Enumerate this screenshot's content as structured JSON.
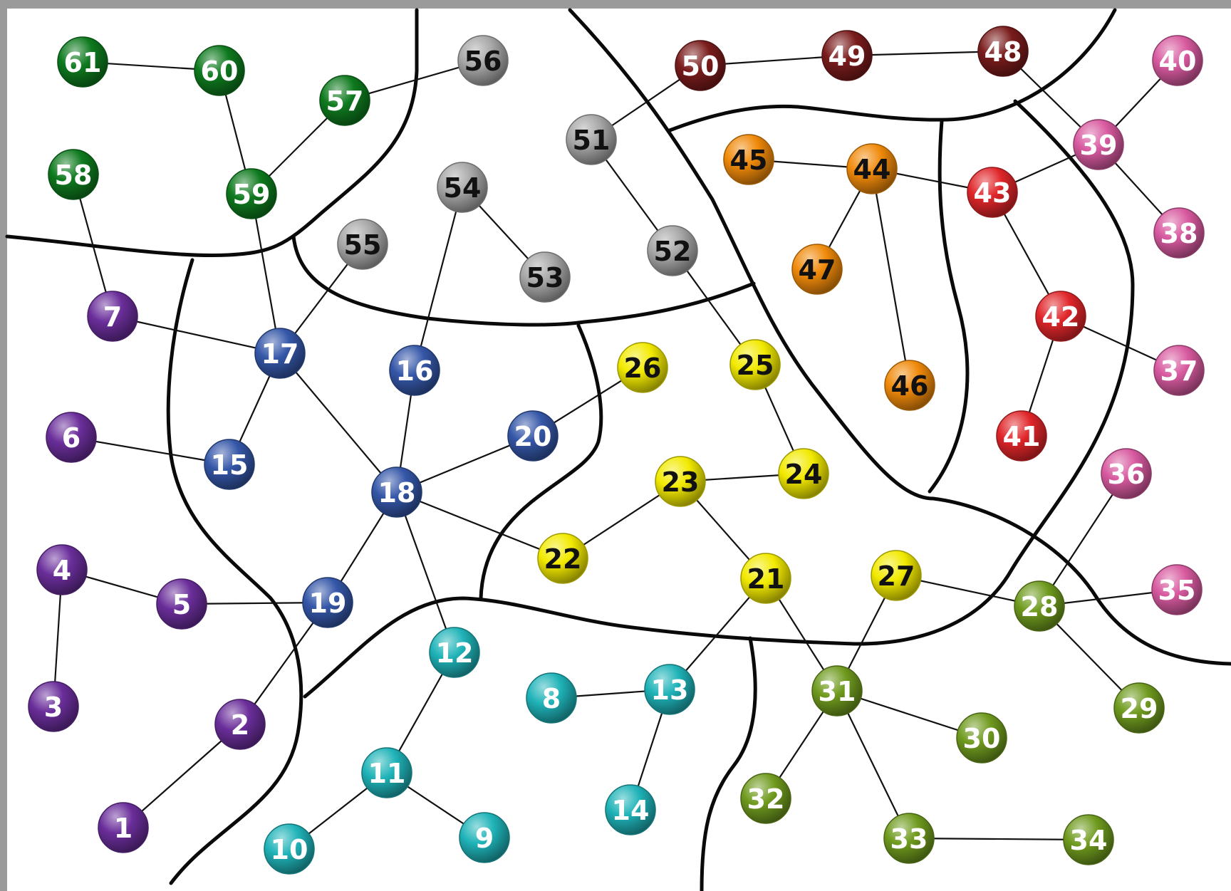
{
  "palette": {
    "purple": "#6a2e9a",
    "blue": "#3557a8",
    "cyan": "#1fb3b8",
    "yellow": "#f2ea00",
    "olive": "#6f9a1e",
    "pink": "#d85aa0",
    "red": "#e0262a",
    "orange": "#f08a0a",
    "maroon": "#7a1c1c",
    "gray": "#a7a7a7",
    "green": "#0e7a1e"
  },
  "nodes": [
    {
      "id": "1",
      "label": "1",
      "group": "purple"
    },
    {
      "id": "2",
      "label": "2",
      "group": "purple"
    },
    {
      "id": "3",
      "label": "3",
      "group": "purple"
    },
    {
      "id": "4",
      "label": "4",
      "group": "purple"
    },
    {
      "id": "5",
      "label": "5",
      "group": "purple"
    },
    {
      "id": "6",
      "label": "6",
      "group": "purple"
    },
    {
      "id": "7",
      "label": "7",
      "group": "purple"
    },
    {
      "id": "8",
      "label": "8",
      "group": "cyan"
    },
    {
      "id": "9",
      "label": "9",
      "group": "cyan"
    },
    {
      "id": "10",
      "label": "10",
      "group": "cyan"
    },
    {
      "id": "11",
      "label": "11",
      "group": "cyan"
    },
    {
      "id": "12",
      "label": "12",
      "group": "cyan"
    },
    {
      "id": "13",
      "label": "13",
      "group": "cyan"
    },
    {
      "id": "14",
      "label": "14",
      "group": "cyan"
    },
    {
      "id": "15",
      "label": "15",
      "group": "blue"
    },
    {
      "id": "16",
      "label": "16",
      "group": "blue"
    },
    {
      "id": "17",
      "label": "17",
      "group": "blue"
    },
    {
      "id": "18",
      "label": "18",
      "group": "blue"
    },
    {
      "id": "19",
      "label": "19",
      "group": "blue"
    },
    {
      "id": "20",
      "label": "20",
      "group": "blue"
    },
    {
      "id": "21",
      "label": "21",
      "group": "yellow"
    },
    {
      "id": "22",
      "label": "22",
      "group": "yellow"
    },
    {
      "id": "23",
      "label": "23",
      "group": "yellow"
    },
    {
      "id": "24",
      "label": "24",
      "group": "yellow"
    },
    {
      "id": "25",
      "label": "25",
      "group": "yellow"
    },
    {
      "id": "26",
      "label": "26",
      "group": "yellow"
    },
    {
      "id": "27",
      "label": "27",
      "group": "yellow"
    },
    {
      "id": "28",
      "label": "28",
      "group": "olive"
    },
    {
      "id": "29",
      "label": "29",
      "group": "olive"
    },
    {
      "id": "30",
      "label": "30",
      "group": "olive"
    },
    {
      "id": "31",
      "label": "31",
      "group": "olive"
    },
    {
      "id": "32",
      "label": "32",
      "group": "olive"
    },
    {
      "id": "33",
      "label": "33",
      "group": "olive"
    },
    {
      "id": "34",
      "label": "34",
      "group": "olive"
    },
    {
      "id": "35",
      "label": "35",
      "group": "pink"
    },
    {
      "id": "36",
      "label": "36",
      "group": "pink"
    },
    {
      "id": "37",
      "label": "37",
      "group": "pink"
    },
    {
      "id": "38",
      "label": "38",
      "group": "pink"
    },
    {
      "id": "39",
      "label": "39",
      "group": "pink"
    },
    {
      "id": "40",
      "label": "40",
      "group": "pink"
    },
    {
      "id": "41",
      "label": "41",
      "group": "red"
    },
    {
      "id": "42",
      "label": "42",
      "group": "red"
    },
    {
      "id": "43",
      "label": "43",
      "group": "red"
    },
    {
      "id": "44",
      "label": "44",
      "group": "orange"
    },
    {
      "id": "45",
      "label": "45",
      "group": "orange"
    },
    {
      "id": "46",
      "label": "46",
      "group": "orange"
    },
    {
      "id": "47",
      "label": "47",
      "group": "orange"
    },
    {
      "id": "48",
      "label": "48",
      "group": "maroon"
    },
    {
      "id": "49",
      "label": "49",
      "group": "maroon"
    },
    {
      "id": "50",
      "label": "50",
      "group": "maroon"
    },
    {
      "id": "51",
      "label": "51",
      "group": "gray"
    },
    {
      "id": "52",
      "label": "52",
      "group": "gray"
    },
    {
      "id": "53",
      "label": "53",
      "group": "gray"
    },
    {
      "id": "54",
      "label": "54",
      "group": "gray"
    },
    {
      "id": "55",
      "label": "55",
      "group": "gray"
    },
    {
      "id": "56",
      "label": "56",
      "group": "gray"
    },
    {
      "id": "57",
      "label": "57",
      "group": "green"
    },
    {
      "id": "58",
      "label": "58",
      "group": "green"
    },
    {
      "id": "59",
      "label": "59",
      "group": "green"
    },
    {
      "id": "60",
      "label": "60",
      "group": "green"
    },
    {
      "id": "61",
      "label": "61",
      "group": "green"
    }
  ],
  "edges": [
    [
      "1",
      "2"
    ],
    [
      "2",
      "19"
    ],
    [
      "19",
      "5"
    ],
    [
      "5",
      "4"
    ],
    [
      "4",
      "3"
    ],
    [
      "19",
      "18"
    ],
    [
      "6",
      "15"
    ],
    [
      "15",
      "17"
    ],
    [
      "7",
      "17"
    ],
    [
      "17",
      "18"
    ],
    [
      "17",
      "55"
    ],
    [
      "17",
      "59"
    ],
    [
      "58",
      "7"
    ],
    [
      "59",
      "60"
    ],
    [
      "60",
      "61"
    ],
    [
      "59",
      "57"
    ],
    [
      "57",
      "56"
    ],
    [
      "18",
      "16"
    ],
    [
      "16",
      "54"
    ],
    [
      "54",
      "53"
    ],
    [
      "18",
      "20"
    ],
    [
      "20",
      "26"
    ],
    [
      "18",
      "22"
    ],
    [
      "18",
      "12"
    ],
    [
      "12",
      "11"
    ],
    [
      "11",
      "10"
    ],
    [
      "11",
      "9"
    ],
    [
      "8",
      "13"
    ],
    [
      "13",
      "14"
    ],
    [
      "13",
      "21"
    ],
    [
      "22",
      "23"
    ],
    [
      "23",
      "24"
    ],
    [
      "23",
      "21"
    ],
    [
      "21",
      "31"
    ],
    [
      "31",
      "32"
    ],
    [
      "31",
      "30"
    ],
    [
      "31",
      "33"
    ],
    [
      "33",
      "34"
    ],
    [
      "31",
      "27"
    ],
    [
      "27",
      "28"
    ],
    [
      "28",
      "35"
    ],
    [
      "28",
      "36"
    ],
    [
      "28",
      "29"
    ],
    [
      "24",
      "25"
    ],
    [
      "25",
      "52"
    ],
    [
      "52",
      "51"
    ],
    [
      "51",
      "50"
    ],
    [
      "50",
      "49"
    ],
    [
      "49",
      "48"
    ],
    [
      "48",
      "39"
    ],
    [
      "39",
      "40"
    ],
    [
      "39",
      "38"
    ],
    [
      "39",
      "43"
    ],
    [
      "43",
      "44"
    ],
    [
      "44",
      "45"
    ],
    [
      "44",
      "47"
    ],
    [
      "44",
      "46"
    ],
    [
      "43",
      "42"
    ],
    [
      "42",
      "37"
    ],
    [
      "42",
      "41"
    ]
  ]
}
